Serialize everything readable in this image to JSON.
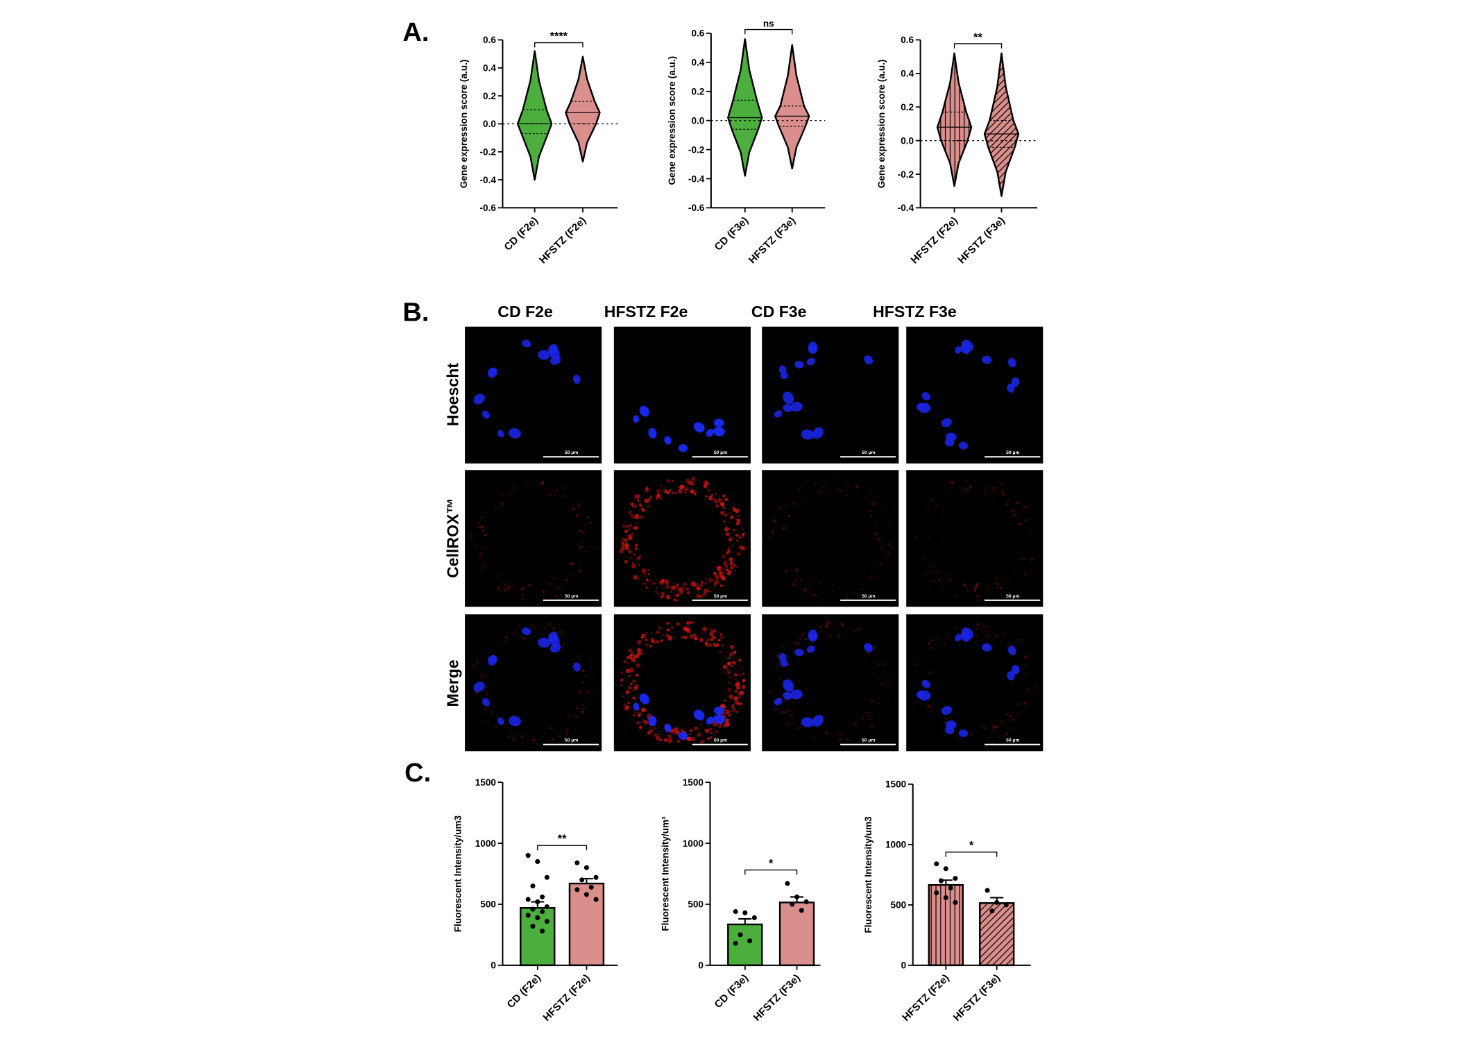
{
  "panel_labels": [
    "A.",
    "B.",
    "C."
  ],
  "microscopy": {
    "columns": [
      "CD F2e",
      "HFSTZ F2e",
      "CD F3e",
      "HFSTZ F3e"
    ],
    "rows": [
      "Hoescht",
      "CellROX™",
      "Merge"
    ],
    "scale_bar": "50 µm"
  },
  "chart_data": [
    {
      "type": "violin",
      "y_label": "Gene expression score (a.u.)",
      "categories": [
        "CD (F2e)",
        "HFSTZ (F2e)"
      ],
      "min": [
        -0.4,
        -0.27
      ],
      "q1": [
        -0.07,
        0.0
      ],
      "median": [
        0.0,
        0.08
      ],
      "q3": [
        0.1,
        0.16
      ],
      "max": [
        0.52,
        0.48
      ],
      "colors": [
        "#4caf3d",
        "#db8f8c"
      ],
      "fill_patterns": [
        "solid",
        "solid"
      ],
      "significance": "****",
      "ylim": [
        -0.6,
        0.6
      ],
      "yticks": [
        0.6,
        0.4,
        0.2,
        {
          "value": 0,
          "label": "0.0"
        },
        -0.2,
        -0.4,
        -0.6
      ],
      "zero_line": true
    },
    {
      "type": "violin",
      "y_label": "Gene expression score (a.u.)",
      "categories": [
        "CD (F3e)",
        "HFSTZ (F3e)"
      ],
      "min": [
        -0.38,
        -0.33
      ],
      "q1": [
        -0.06,
        -0.04
      ],
      "median": [
        0.02,
        0.03
      ],
      "q3": [
        0.14,
        0.1
      ],
      "max": [
        0.56,
        0.52
      ],
      "colors": [
        "#4caf3d",
        "#db8f8c"
      ],
      "fill_patterns": [
        "solid",
        "solid"
      ],
      "significance": "ns",
      "ylim": [
        -0.6,
        0.6
      ],
      "yticks": [
        0.6,
        0.4,
        0.2,
        {
          "value": 0,
          "label": "0.0"
        },
        -0.2,
        -0.4,
        -0.6
      ],
      "zero_line": true
    },
    {
      "type": "violin",
      "y_label": "Gene expression score (a.u.)",
      "categories": [
        "HFSTZ (F2e)",
        "HFSTZ (F3e)"
      ],
      "min": [
        -0.27,
        -0.33
      ],
      "q1": [
        0.0,
        -0.04
      ],
      "median": [
        0.08,
        0.04
      ],
      "q3": [
        0.17,
        0.12
      ],
      "max": [
        0.52,
        0.52
      ],
      "colors": [
        "#db8f8c",
        "#db8f8c"
      ],
      "fill_patterns": [
        "vertical",
        "diagonal"
      ],
      "significance": "**",
      "ylim": [
        -0.4,
        0.6
      ],
      "yticks": [
        0.6,
        0.4,
        0.2,
        {
          "value": 0,
          "label": "0.0"
        },
        -0.2,
        -0.4
      ],
      "zero_line": true
    },
    {
      "type": "bar",
      "y_label": "Fluorescent Intensity/um3",
      "categories": [
        "CD (F2e)",
        "HFSTZ (F2e)"
      ],
      "values": [
        470,
        670
      ],
      "errors": [
        50,
        40
      ],
      "points": [
        [
          900,
          850,
          720,
          650,
          560,
          540,
          520,
          480,
          460,
          440,
          410,
          390,
          360,
          320,
          280
        ],
        [
          840,
          800,
          720,
          700,
          640,
          620,
          580,
          540
        ]
      ],
      "colors": [
        "#4caf3d",
        "#db8f8c"
      ],
      "fill_patterns": [
        "solid",
        "solid"
      ],
      "significance": "**",
      "ylim": [
        0,
        1500
      ],
      "yticks": [
        0,
        500,
        1000,
        1500
      ]
    },
    {
      "type": "bar",
      "y_label": "Fluorescent Intensity/um³",
      "categories": [
        "CD (F3e)",
        "HFSTZ (F3e)"
      ],
      "values": [
        335,
        515
      ],
      "errors": [
        45,
        45
      ],
      "points": [
        [
          440,
          430,
          390,
          250,
          200,
          180
        ],
        [
          670,
          560,
          520,
          500,
          450
        ]
      ],
      "colors": [
        "#4caf3d",
        "#db8f8c"
      ],
      "fill_patterns": [
        "solid",
        "solid"
      ],
      "significance": "*",
      "ylim": [
        0,
        1500
      ],
      "yticks": [
        0,
        500,
        1000,
        1500
      ]
    },
    {
      "type": "bar",
      "y_label": "Fluorescent Intensity/um3",
      "categories": [
        "HFSTZ (F2e)",
        "HFSTZ (F3e)"
      ],
      "values": [
        665,
        515
      ],
      "errors": [
        40,
        45
      ],
      "points": [
        [
          840,
          800,
          720,
          700,
          640,
          600,
          560,
          520
        ],
        [
          620,
          520,
          500,
          450
        ]
      ],
      "colors": [
        "#db8f8c",
        "#db8f8c"
      ],
      "fill_patterns": [
        "vertical",
        "diagonal"
      ],
      "significance": "*",
      "ylim": [
        0,
        1500
      ],
      "yticks": [
        0,
        500,
        1000,
        1500
      ]
    }
  ]
}
